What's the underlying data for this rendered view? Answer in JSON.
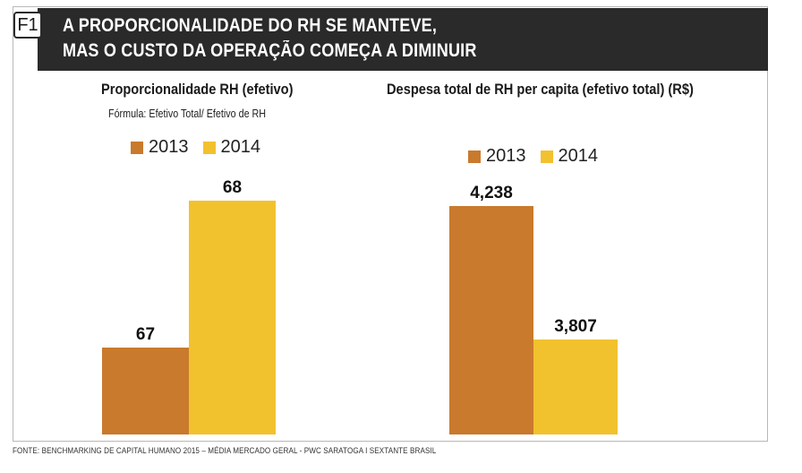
{
  "header": {
    "badge": "F1",
    "title_line1": "A PROPORCIONALIDADE DO RH SE MANTEVE,",
    "title_line2": "MAS O CUSTO DA OPERAÇÃO COMEÇA A DIMINUIR"
  },
  "colors": {
    "series_2013": "#c97a2c",
    "series_2014": "#f2c12e",
    "header_bg": "#2a2a2a"
  },
  "chart_data": [
    {
      "type": "bar",
      "title": "Proporcionalidade RH (efetivo)",
      "subtitle": "Fórmula: Efetivo Total/ Efetivo de RH",
      "series": [
        {
          "name": "2013",
          "values": [
            67
          ],
          "label": "67"
        },
        {
          "name": "2014",
          "values": [
            68
          ],
          "label": "68"
        }
      ],
      "legend": [
        "2013",
        "2014"
      ],
      "legend_position": "top",
      "grid": false
    },
    {
      "type": "bar",
      "title": "Despesa total de RH per capita (efetivo total) (R$)",
      "series": [
        {
          "name": "2013",
          "values": [
            4238
          ],
          "label": "4,238"
        },
        {
          "name": "2014",
          "values": [
            3807
          ],
          "label": "3,807"
        }
      ],
      "legend": [
        "2013",
        "2014"
      ],
      "legend_position": "top",
      "grid": false
    }
  ],
  "source": "FONTE: BENCHMARKING DE CAPITAL HUMANO 2015 – MÉDIA MERCADO GERAL - PWC SARATOGA I SEXTANTE BRASIL"
}
